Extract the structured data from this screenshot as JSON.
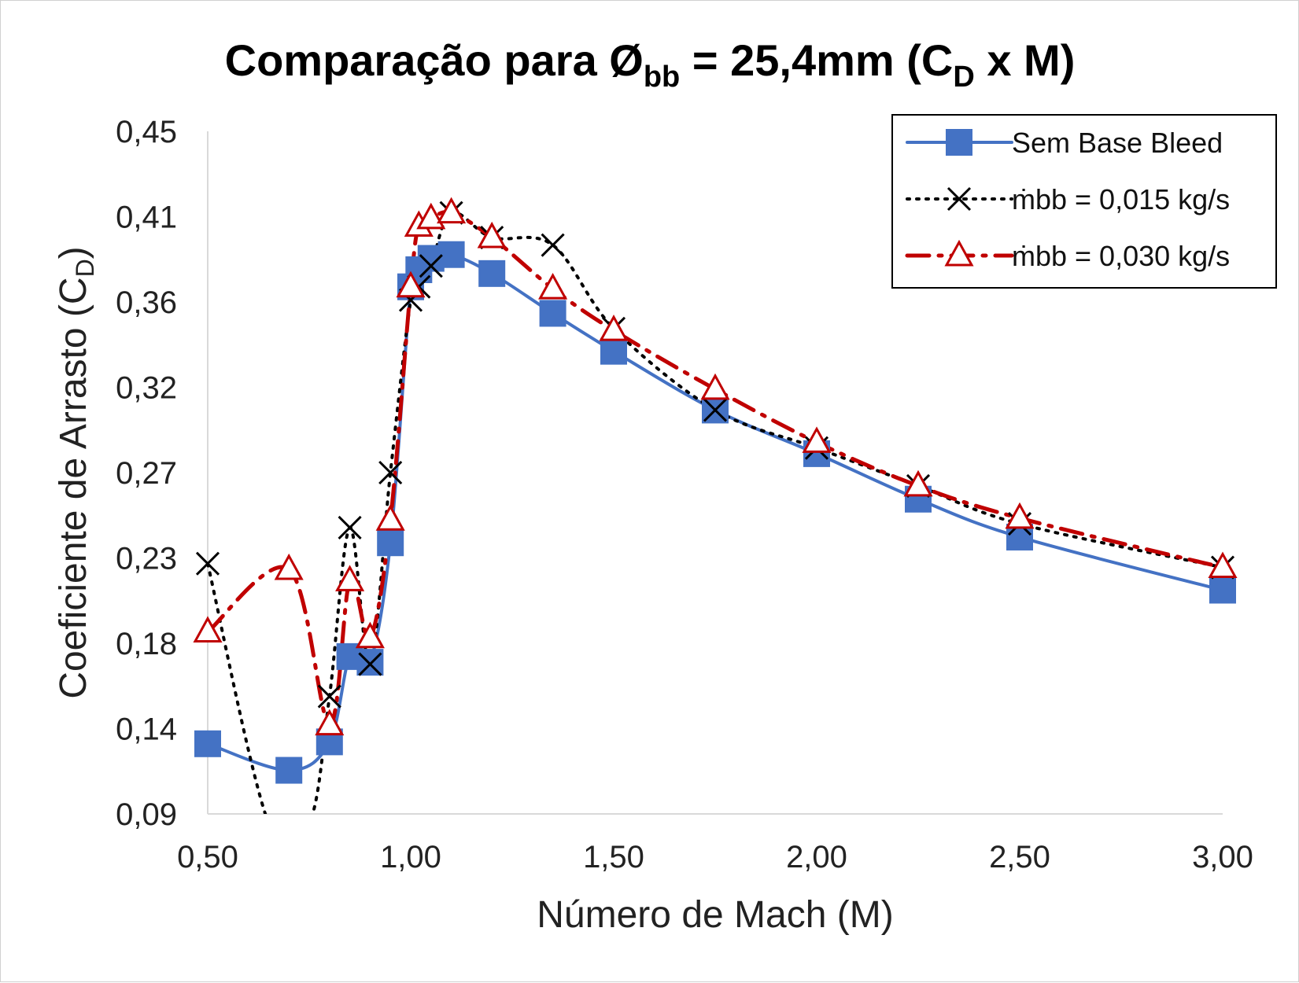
{
  "chart_data": {
    "type": "line",
    "title": {
      "main": "Comparação para Ø",
      "main_sub": "bb",
      "mid": " = 25,4mm (C",
      "mid_sub": "D",
      "end": " x M)"
    },
    "xlabel": "Número de Mach (M)",
    "ylabel": {
      "main": "Coeficiente de Arrasto (C",
      "sub": "D",
      "end": ")"
    },
    "xlim": [
      0.5,
      3.0
    ],
    "ylim": [
      0.09,
      0.45
    ],
    "x_ticks": [
      "0,50",
      "1,00",
      "1,50",
      "2,00",
      "2,50",
      "3,00"
    ],
    "x_tick_values": [
      0.5,
      1.0,
      1.5,
      2.0,
      2.5,
      3.0
    ],
    "y_ticks": [
      "0,45",
      "0,41",
      "0,36",
      "0,32",
      "0,27",
      "0,23",
      "0,18",
      "0,14",
      "0,09"
    ],
    "y_tick_values": [
      0.45,
      0.405,
      0.36,
      0.315,
      0.27,
      0.225,
      0.18,
      0.135,
      0.09
    ],
    "grid": false,
    "legend_position": "top-right",
    "series": [
      {
        "name": "Sem Base Bleed",
        "color": "#4472C4",
        "marker": "square",
        "line": "solid",
        "points": [
          [
            0.5,
            0.127
          ],
          [
            0.7,
            0.113
          ],
          [
            0.8,
            0.128
          ],
          [
            0.85,
            0.173
          ],
          [
            0.9,
            0.17
          ],
          [
            0.95,
            0.233
          ],
          [
            1.0,
            0.368
          ],
          [
            1.02,
            0.377
          ],
          [
            1.05,
            0.383
          ],
          [
            1.1,
            0.385
          ],
          [
            1.2,
            0.375
          ],
          [
            1.35,
            0.354
          ],
          [
            1.5,
            0.334
          ],
          [
            1.75,
            0.303
          ],
          [
            2.0,
            0.28
          ],
          [
            2.25,
            0.256
          ],
          [
            2.5,
            0.236
          ],
          [
            3.0,
            0.208
          ]
        ]
      },
      {
        "name": "ṁbb = 0,015 kg/s",
        "color": "#000000",
        "marker": "x",
        "line": "dotted",
        "points": [
          [
            0.5,
            0.222
          ],
          [
            0.65,
            0.085
          ],
          [
            0.75,
            0.085
          ],
          [
            0.8,
            0.152
          ],
          [
            0.85,
            0.241
          ],
          [
            0.9,
            0.169
          ],
          [
            0.95,
            0.27
          ],
          [
            1.0,
            0.361
          ],
          [
            1.02,
            0.368
          ],
          [
            1.05,
            0.379
          ],
          [
            1.1,
            0.407
          ],
          [
            1.2,
            0.394
          ],
          [
            1.35,
            0.39
          ],
          [
            1.5,
            0.346
          ],
          [
            1.75,
            0.303
          ],
          [
            2.0,
            0.283
          ],
          [
            2.25,
            0.263
          ],
          [
            2.5,
            0.243
          ],
          [
            3.0,
            0.22
          ]
        ]
      },
      {
        "name": "ṁbb = 0,030 kg/s",
        "color": "#C00000",
        "marker": "triangle",
        "line": "dashdot",
        "points": [
          [
            0.5,
            0.186
          ],
          [
            0.7,
            0.219
          ],
          [
            0.8,
            0.137
          ],
          [
            0.85,
            0.213
          ],
          [
            0.9,
            0.183
          ],
          [
            0.95,
            0.245
          ],
          [
            1.0,
            0.368
          ],
          [
            1.02,
            0.4
          ],
          [
            1.05,
            0.404
          ],
          [
            1.1,
            0.407
          ],
          [
            1.2,
            0.394
          ],
          [
            1.35,
            0.367
          ],
          [
            1.5,
            0.345
          ],
          [
            1.75,
            0.314
          ],
          [
            2.0,
            0.286
          ],
          [
            2.25,
            0.263
          ],
          [
            2.5,
            0.246
          ],
          [
            3.0,
            0.22
          ]
        ]
      }
    ]
  }
}
